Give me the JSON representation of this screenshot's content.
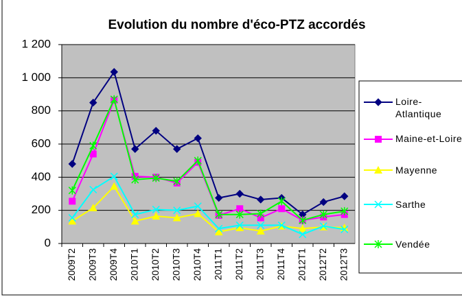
{
  "chart_data": {
    "type": "line",
    "title": "Evolution du nombre d'éco-PTZ accordés",
    "categories": [
      "2009T2",
      "2009T3",
      "2009T4",
      "2010T1",
      "2010T2",
      "2010T3",
      "2010T4",
      "2011T1",
      "2011T2",
      "2011T3",
      "2011T4",
      "2012T1",
      "2012T2",
      "2012T3"
    ],
    "series": [
      {
        "name": "Loire-Atlantique",
        "color": "#000080",
        "marker": "diamond",
        "values": [
          480,
          850,
          1035,
          570,
          680,
          570,
          635,
          275,
          300,
          265,
          275,
          175,
          250,
          285
        ]
      },
      {
        "name": "Maine-et-Loire",
        "color": "#ff00ff",
        "marker": "square",
        "values": [
          255,
          540,
          865,
          405,
          400,
          365,
          490,
          170,
          210,
          155,
          210,
          140,
          160,
          175
        ]
      },
      {
        "name": "Mayenne",
        "color": "#ffff00",
        "marker": "triangle",
        "values": [
          135,
          215,
          345,
          135,
          165,
          155,
          180,
          70,
          95,
          75,
          105,
          90,
          100,
          95
        ]
      },
      {
        "name": "Sarthe",
        "color": "#00ffff",
        "marker": "x",
        "values": [
          155,
          325,
          405,
          175,
          205,
          200,
          225,
          90,
          110,
          110,
          110,
          55,
          105,
          85
        ]
      },
      {
        "name": "Vendée",
        "color": "#00ff00",
        "marker": "star",
        "values": [
          320,
          590,
          870,
          385,
          395,
          375,
          500,
          175,
          175,
          180,
          255,
          140,
          175,
          195
        ]
      }
    ],
    "ylim": [
      0,
      1200
    ],
    "yticks": [
      0,
      200,
      400,
      600,
      800,
      {
        "value": 1000,
        "label": "1 000"
      },
      {
        "value": 1200,
        "label": "1 200"
      }
    ],
    "grid": true,
    "legend": "right"
  }
}
